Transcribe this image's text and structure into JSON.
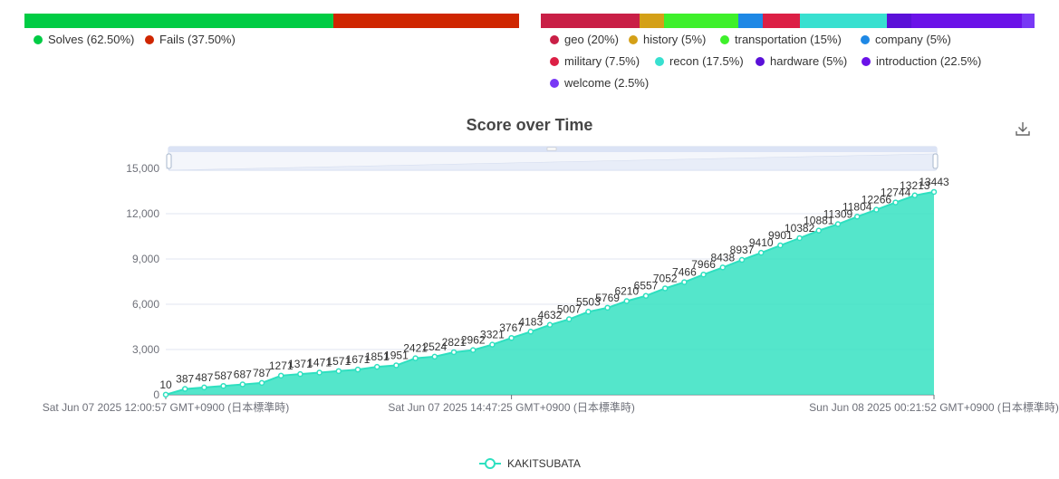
{
  "solve_bar": {
    "segments": [
      {
        "label": "Solves (62.50%)",
        "value": 62.5,
        "color": "#00cc44"
      },
      {
        "label": "Fails (37.50%)",
        "value": 37.5,
        "color": "#cf2600"
      }
    ]
  },
  "category_bar": {
    "segments": [
      {
        "label": "geo (20%)",
        "value": 20,
        "color": "#c91f46"
      },
      {
        "label": "history (5%)",
        "value": 5,
        "color": "#d4a017"
      },
      {
        "label": "transportation (15%)",
        "value": 15,
        "color": "#3ef02b"
      },
      {
        "label": "company (5%)",
        "value": 5,
        "color": "#1e88e5"
      },
      {
        "label": "military (7.5%)",
        "value": 7.5,
        "color": "#dc1f45"
      },
      {
        "label": "recon (17.5%)",
        "value": 17.5,
        "color": "#38e0d0"
      },
      {
        "label": "hardware (5%)",
        "value": 5,
        "color": "#5a10d8"
      },
      {
        "label": "introduction (22.5%)",
        "value": 22.5,
        "color": "#6a12e8"
      },
      {
        "label": "welcome (2.5%)",
        "value": 2.5,
        "color": "#7838f5"
      }
    ]
  },
  "chart_title": "Score over Time",
  "series_legend": {
    "name": "KAKITSUBATA",
    "color": "#2ee0c0"
  },
  "chart_data": {
    "type": "area",
    "title": "Score over Time",
    "series": [
      {
        "name": "KAKITSUBATA",
        "values": [
          10,
          387,
          487,
          587,
          687,
          787,
          1271,
          1371,
          1471,
          1571,
          1671,
          1851,
          1951,
          2421,
          2524,
          2821,
          2962,
          3321,
          3767,
          4183,
          4632,
          5007,
          5503,
          5769,
          6210,
          6557,
          7052,
          7466,
          7966,
          8438,
          8937,
          9410,
          9901,
          10382,
          10881,
          11309,
          11804,
          12266,
          12744,
          13213,
          13443
        ]
      }
    ],
    "x_tick_labels": [
      "Sat Jun 07 2025 12:00:57 GMT+0900 (日本標準時)",
      "Sat Jun 07 2025 14:47:25 GMT+0900 (日本標準時)",
      "Sun Jun 08 2025 00:21:52 GMT+0900 (日本標準時)"
    ],
    "y_ticks": [
      0,
      3000,
      6000,
      9000,
      12000,
      15000
    ],
    "y_tick_labels": [
      "0",
      "3,000",
      "6,000",
      "9,000",
      "12,000",
      "15,000"
    ],
    "ylim": [
      0,
      15000
    ],
    "data_labels": [
      "10",
      "387",
      "487",
      "587",
      "687",
      "787",
      "1271",
      "1371",
      "1471",
      "1571",
      "1671",
      "1851",
      "1951",
      "2421",
      "2524",
      "2821",
      "2962",
      "3321",
      "3767",
      "4183",
      "4632",
      "5007",
      "5503",
      "5769",
      "6210",
      "6557",
      "7052",
      "7466",
      "7966",
      "8438",
      "8937",
      "9410",
      "9901",
      "10382",
      "10881",
      "11309",
      "11804",
      "12266",
      "12744",
      "13213",
      "13443"
    ],
    "grid": true,
    "legend": "bottom-center",
    "color": "#2ee0c0"
  }
}
